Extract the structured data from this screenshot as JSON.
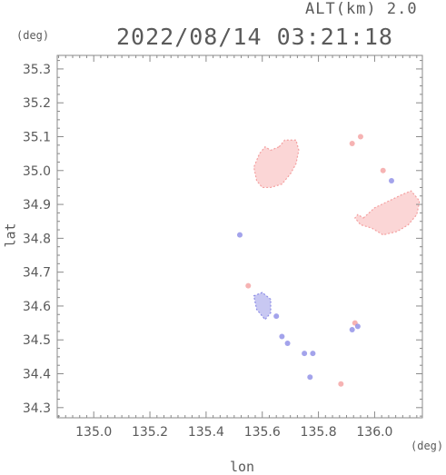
{
  "header": {
    "altitude_label": "ALT(km) 2.0",
    "timestamp": "2022/08/14 03:21:18"
  },
  "chart_data": {
    "type": "heatmap",
    "title": "2022/08/14 03:21:18",
    "xlabel": "lon",
    "ylabel": "lat",
    "x_unit": "(deg)",
    "y_unit": "(deg)",
    "xlim": [
      134.87,
      136.17
    ],
    "ylim": [
      34.27,
      35.34
    ],
    "x_ticks": [
      135.0,
      135.2,
      135.4,
      135.6,
      135.8,
      136.0
    ],
    "x_tick_labels": [
      "135.0",
      "135.2",
      "135.4",
      "135.6",
      "135.8",
      "136.0"
    ],
    "y_ticks": [
      34.3,
      34.4,
      34.5,
      34.6,
      34.7,
      34.8,
      34.9,
      35.0,
      35.1,
      35.2,
      35.3
    ],
    "y_tick_labels": [
      "34.3",
      "34.4",
      "34.5",
      "34.6",
      "34.7",
      "34.8",
      "34.9",
      "35.0",
      "35.1",
      "35.2",
      "35.3"
    ],
    "colors": {
      "positive": "#f4a0a0",
      "positive_light": "#fbd6d6",
      "negative": "#8c8ce6",
      "negative_light": "#c8c8f2"
    },
    "echo_regions": [
      {
        "lon": [
          135.66,
          135.68,
          135.72,
          135.73,
          135.72,
          135.7,
          135.67,
          135.63,
          135.6,
          135.58,
          135.57,
          135.59,
          135.61,
          135.63
        ],
        "lat": [
          35.07,
          35.09,
          35.09,
          35.06,
          35.02,
          34.99,
          34.96,
          34.95,
          34.95,
          34.97,
          35.01,
          35.05,
          35.07,
          35.06
        ],
        "sign": "positive"
      },
      {
        "lon": [
          135.96,
          136.0,
          136.05,
          136.1,
          136.13,
          136.16,
          136.15,
          136.12,
          136.08,
          136.03,
          135.99,
          135.95,
          135.93,
          135.94
        ],
        "lat": [
          34.86,
          34.89,
          34.91,
          34.93,
          34.94,
          34.91,
          34.87,
          34.84,
          34.82,
          34.81,
          34.83,
          34.84,
          34.86,
          34.87
        ],
        "sign": "positive"
      },
      {
        "lon": [
          135.57,
          135.6,
          135.63,
          135.63,
          135.61,
          135.58
        ],
        "lat": [
          34.63,
          34.64,
          34.62,
          34.58,
          34.56,
          34.59
        ],
        "sign": "negative"
      }
    ],
    "echo_points": [
      {
        "lon": 135.92,
        "lat": 35.08,
        "sign": "positive"
      },
      {
        "lon": 135.95,
        "lat": 35.1,
        "sign": "positive"
      },
      {
        "lon": 136.03,
        "lat": 35.0,
        "sign": "positive"
      },
      {
        "lon": 136.06,
        "lat": 34.97,
        "sign": "negative"
      },
      {
        "lon": 135.93,
        "lat": 34.55,
        "sign": "positive"
      },
      {
        "lon": 135.94,
        "lat": 34.54,
        "sign": "negative"
      },
      {
        "lon": 135.92,
        "lat": 34.53,
        "sign": "negative"
      },
      {
        "lon": 135.75,
        "lat": 34.46,
        "sign": "negative"
      },
      {
        "lon": 135.78,
        "lat": 34.46,
        "sign": "negative"
      },
      {
        "lon": 135.67,
        "lat": 34.51,
        "sign": "negative"
      },
      {
        "lon": 135.69,
        "lat": 34.49,
        "sign": "negative"
      },
      {
        "lon": 135.77,
        "lat": 34.39,
        "sign": "negative"
      },
      {
        "lon": 135.88,
        "lat": 34.37,
        "sign": "positive"
      },
      {
        "lon": 135.65,
        "lat": 34.57,
        "sign": "negative"
      },
      {
        "lon": 135.52,
        "lat": 34.81,
        "sign": "negative"
      },
      {
        "lon": 135.55,
        "lat": 34.66,
        "sign": "positive"
      }
    ]
  }
}
